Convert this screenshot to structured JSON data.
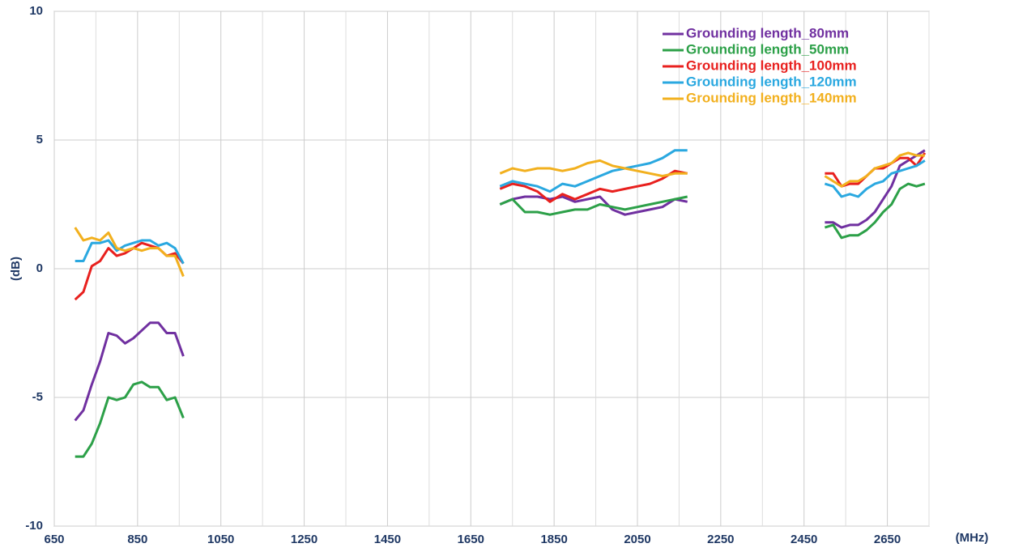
{
  "chart_data": {
    "type": "line",
    "xlabel": "(MHz)",
    "ylabel": "(dB)",
    "xlim": [
      650,
      2750
    ],
    "ylim": [
      -10,
      10
    ],
    "xticks": [
      650,
      850,
      1050,
      1250,
      1450,
      1650,
      1850,
      2050,
      2250,
      2450,
      2650
    ],
    "minor_xticks": [
      750,
      950,
      1150,
      1350,
      1550,
      1750,
      1950,
      2150,
      2350,
      2550,
      2750
    ],
    "yticks": [
      -10,
      -5,
      0,
      5,
      10
    ],
    "grid": true,
    "legend": "upper right",
    "x": [
      700,
      720,
      740,
      760,
      780,
      800,
      820,
      840,
      860,
      880,
      900,
      920,
      940,
      960,
      1340,
      1720,
      1750,
      1780,
      1810,
      1840,
      1870,
      1900,
      1930,
      1960,
      1990,
      2020,
      2050,
      2080,
      2110,
      2140,
      2170,
      2340,
      2500,
      2520,
      2540,
      2560,
      2580,
      2600,
      2620,
      2640,
      2660,
      2680,
      2700,
      2720,
      2740
    ],
    "series": [
      {
        "name": "Grounding length_80mm",
        "color": "#7030a0",
        "values": [
          -5.9,
          -5.5,
          -4.5,
          -3.6,
          -2.5,
          -2.6,
          -2.9,
          -2.7,
          -2.4,
          -2.1,
          -2.1,
          -2.5,
          -2.5,
          -3.4,
          null,
          2.5,
          2.7,
          2.8,
          2.8,
          2.7,
          2.8,
          2.6,
          2.7,
          2.8,
          2.3,
          2.1,
          2.2,
          2.3,
          2.4,
          2.7,
          2.6,
          null,
          1.8,
          1.8,
          1.6,
          1.7,
          1.7,
          1.9,
          2.2,
          2.7,
          3.2,
          4.0,
          4.2,
          4.4,
          4.6
        ]
      },
      {
        "name": "Grounding length_50mm",
        "color": "#2ca048",
        "values": [
          -7.3,
          -7.3,
          -6.8,
          -6.0,
          -5.0,
          -5.1,
          -5.0,
          -4.5,
          -4.4,
          -4.6,
          -4.6,
          -5.1,
          -5.0,
          -5.8,
          null,
          2.5,
          2.7,
          2.2,
          2.2,
          2.1,
          2.2,
          2.3,
          2.3,
          2.5,
          2.4,
          2.3,
          2.4,
          2.5,
          2.6,
          2.7,
          2.8,
          null,
          1.6,
          1.7,
          1.2,
          1.3,
          1.3,
          1.5,
          1.8,
          2.2,
          2.5,
          3.1,
          3.3,
          3.2,
          3.3
        ]
      },
      {
        "name": "Grounding length_100mm",
        "color": "#e8201e",
        "values": [
          -1.2,
          -0.9,
          0.1,
          0.3,
          0.8,
          0.5,
          0.6,
          0.8,
          1.0,
          0.9,
          0.8,
          0.5,
          0.6,
          0.2,
          null,
          3.1,
          3.3,
          3.2,
          3.0,
          2.6,
          2.9,
          2.7,
          2.9,
          3.1,
          3.0,
          3.1,
          3.2,
          3.3,
          3.5,
          3.8,
          3.7,
          null,
          3.7,
          3.7,
          3.2,
          3.3,
          3.3,
          3.6,
          3.9,
          3.9,
          4.1,
          4.3,
          4.3,
          4.0,
          4.5
        ]
      },
      {
        "name": "Grounding length_120mm",
        "color": "#2aa8e0",
        "values": [
          0.3,
          0.3,
          1.0,
          1.0,
          1.1,
          0.7,
          0.9,
          1.0,
          1.1,
          1.1,
          0.9,
          1.0,
          0.8,
          0.2,
          null,
          3.2,
          3.4,
          3.3,
          3.2,
          3.0,
          3.3,
          3.2,
          3.4,
          3.6,
          3.8,
          3.9,
          4.0,
          4.1,
          4.3,
          4.6,
          4.6,
          null,
          3.3,
          3.2,
          2.8,
          2.9,
          2.8,
          3.1,
          3.3,
          3.4,
          3.7,
          3.8,
          3.9,
          4.0,
          4.2
        ]
      },
      {
        "name": "Grounding length_140mm",
        "color": "#f2b01e",
        "values": [
          1.6,
          1.1,
          1.2,
          1.1,
          1.4,
          0.8,
          0.7,
          0.8,
          0.7,
          0.8,
          0.8,
          0.5,
          0.5,
          -0.3,
          null,
          3.7,
          3.9,
          3.8,
          3.9,
          3.9,
          3.8,
          3.9,
          4.1,
          4.2,
          4.0,
          3.9,
          3.8,
          3.7,
          3.6,
          3.7,
          3.7,
          null,
          3.6,
          3.4,
          3.2,
          3.4,
          3.4,
          3.6,
          3.9,
          4.0,
          4.1,
          4.4,
          4.5,
          4.4,
          4.4
        ]
      }
    ]
  }
}
